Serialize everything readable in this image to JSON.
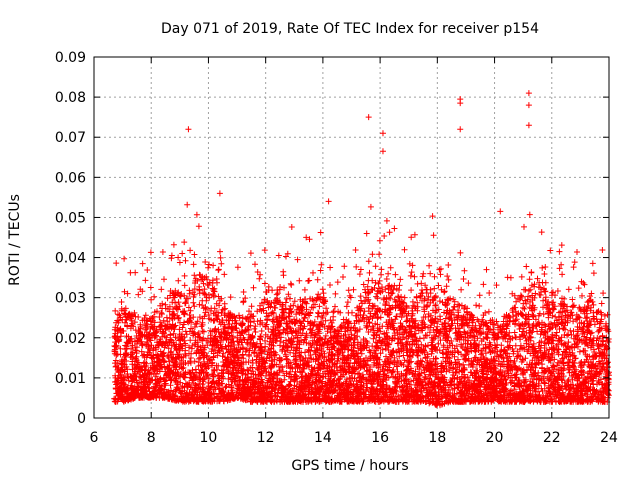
{
  "chart_data": {
    "type": "scatter",
    "title": "Day 071 of 2019, Rate Of TEC Index for receiver p154",
    "xlabel": "GPS time / hours",
    "ylabel": "ROTI / TECUs",
    "xlim": [
      6,
      24
    ],
    "ylim": [
      0,
      0.09
    ],
    "grid": true,
    "marker": "+",
    "color": "#ff0000",
    "x_ticks": [
      6,
      8,
      10,
      12,
      14,
      16,
      18,
      20,
      22,
      24
    ],
    "x_tick_labels": [
      "6",
      "8",
      "10",
      "12",
      "14",
      "16",
      "18",
      "20",
      "22",
      "24"
    ],
    "y_ticks": [
      0,
      0.01,
      0.02,
      0.03,
      0.04,
      0.05,
      0.06,
      0.07,
      0.08,
      0.09
    ],
    "y_tick_labels": [
      "0",
      "0.01",
      "0.02",
      "0.03",
      "0.04",
      "0.05",
      "0.06",
      "0.07",
      "0.08",
      "0.09"
    ],
    "notable_points": [
      {
        "x": 9.3,
        "y": 0.072
      },
      {
        "x": 10.4,
        "y": 0.056
      },
      {
        "x": 15.6,
        "y": 0.075
      },
      {
        "x": 16.1,
        "y": 0.071
      },
      {
        "x": 16.1,
        "y": 0.0665
      },
      {
        "x": 18.8,
        "y": 0.0795
      },
      {
        "x": 18.8,
        "y": 0.0785
      },
      {
        "x": 18.8,
        "y": 0.072
      },
      {
        "x": 21.2,
        "y": 0.081
      },
      {
        "x": 21.2,
        "y": 0.078
      },
      {
        "x": 21.2,
        "y": 0.073
      },
      {
        "x": 20.2,
        "y": 0.0515
      },
      {
        "x": 14.2,
        "y": 0.054
      },
      {
        "x": 7.7,
        "y": 0.0385
      }
    ],
    "envelope": {
      "x": [
        6.7,
        7.0,
        7.5,
        8.0,
        8.5,
        9.0,
        9.5,
        10.0,
        10.5,
        11.0,
        11.5,
        12.0,
        12.5,
        13.0,
        13.5,
        14.0,
        14.4,
        14.5,
        15.0,
        15.5,
        16.0,
        16.5,
        17.0,
        17.5,
        18.0,
        18.5,
        19.0,
        19.5,
        20.0,
        20.5,
        21.0,
        21.5,
        22.0,
        22.5,
        23.0,
        23.5,
        24.0
      ],
      "upper": [
        0.026,
        0.028,
        0.024,
        0.025,
        0.03,
        0.033,
        0.036,
        0.036,
        0.03,
        0.024,
        0.027,
        0.03,
        0.03,
        0.03,
        0.029,
        0.032,
        0.022,
        0.022,
        0.026,
        0.032,
        0.036,
        0.033,
        0.029,
        0.032,
        0.033,
        0.03,
        0.028,
        0.025,
        0.024,
        0.026,
        0.032,
        0.034,
        0.032,
        0.029,
        0.028,
        0.03,
        0.022
      ],
      "lower": [
        0.004,
        0.004,
        0.005,
        0.005,
        0.005,
        0.004,
        0.004,
        0.004,
        0.004,
        0.005,
        0.004,
        0.004,
        0.004,
        0.004,
        0.004,
        0.004,
        0.004,
        0.004,
        0.004,
        0.004,
        0.004,
        0.004,
        0.004,
        0.004,
        0.003,
        0.004,
        0.004,
        0.004,
        0.004,
        0.004,
        0.004,
        0.004,
        0.004,
        0.004,
        0.004,
        0.004,
        0.004
      ]
    }
  }
}
